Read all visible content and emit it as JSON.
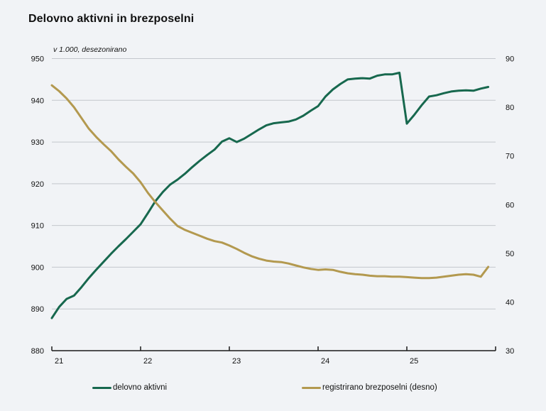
{
  "title": "Delovno aktivni in brezposelni",
  "subtitle": "v 1.000, desezonirano",
  "legend": {
    "items": [
      {
        "label": "delovno aktivni",
        "color": "#17684e"
      },
      {
        "label": "registrirano brezposelni (desno)",
        "color": "#b3994f"
      }
    ]
  },
  "chart_data": {
    "type": "line",
    "title": "Delovno aktivni in brezposelni",
    "subtitle": "v 1.000, desezonirano",
    "x_unit": "month",
    "x_range": "2021-01 to 2025-12",
    "x_tick_labels": [
      "21",
      "22",
      "23",
      "24",
      "25"
    ],
    "grid": true,
    "legend_position": "bottom",
    "left_axis": {
      "min": 880,
      "max": 950,
      "step": 10,
      "ticks": [
        "880",
        "890",
        "900",
        "910",
        "920",
        "930",
        "940",
        "950"
      ]
    },
    "right_axis": {
      "min": 30,
      "max": 90,
      "step": 10,
      "ticks": [
        "30",
        "40",
        "50",
        "60",
        "70",
        "80",
        "90"
      ]
    },
    "series": [
      {
        "name": "delovno aktivni",
        "axis": "left",
        "color": "#17684e",
        "values": [
          887.8,
          890.5,
          892.4,
          893.2,
          895.2,
          897.4,
          899.4,
          901.3,
          903.2,
          905.0,
          906.7,
          908.5,
          910.3,
          913.0,
          915.8,
          918.0,
          919.8,
          921.0,
          922.4,
          924.0,
          925.5,
          926.9,
          928.2,
          930.1,
          930.9,
          930.0,
          930.8,
          931.9,
          933.0,
          934.0,
          934.5,
          934.7,
          934.9,
          935.4,
          936.3,
          937.5,
          938.6,
          940.9,
          942.6,
          943.9,
          945.0,
          945.2,
          945.3,
          945.2,
          945.9,
          946.2,
          946.2,
          946.6,
          934.4,
          936.5,
          938.8,
          940.9,
          941.2,
          941.7,
          942.1,
          942.3,
          942.4,
          942.3,
          942.8,
          943.2
        ]
      },
      {
        "name": "registrirano brezposelni (desno)",
        "axis": "right",
        "color": "#b3994f",
        "values": [
          84.5,
          83.3,
          81.8,
          80.0,
          77.8,
          75.6,
          73.9,
          72.4,
          71.0,
          69.3,
          67.8,
          66.4,
          64.6,
          62.4,
          60.5,
          58.8,
          57.1,
          55.6,
          54.8,
          54.2,
          53.6,
          53.0,
          52.5,
          52.2,
          51.6,
          50.9,
          50.1,
          49.4,
          48.9,
          48.5,
          48.3,
          48.2,
          47.9,
          47.5,
          47.1,
          46.8,
          46.6,
          46.7,
          46.6,
          46.2,
          45.9,
          45.7,
          45.6,
          45.4,
          45.3,
          45.3,
          45.2,
          45.2,
          45.1,
          45.0,
          44.9,
          44.9,
          45.0,
          45.2,
          45.4,
          45.6,
          45.7,
          45.6,
          45.2,
          47.2
        ]
      }
    ]
  },
  "colors": {
    "background": "#f1f3f6",
    "gridline": "#c3c7cc",
    "axis": "#1a1a1a",
    "text": "#111111"
  }
}
